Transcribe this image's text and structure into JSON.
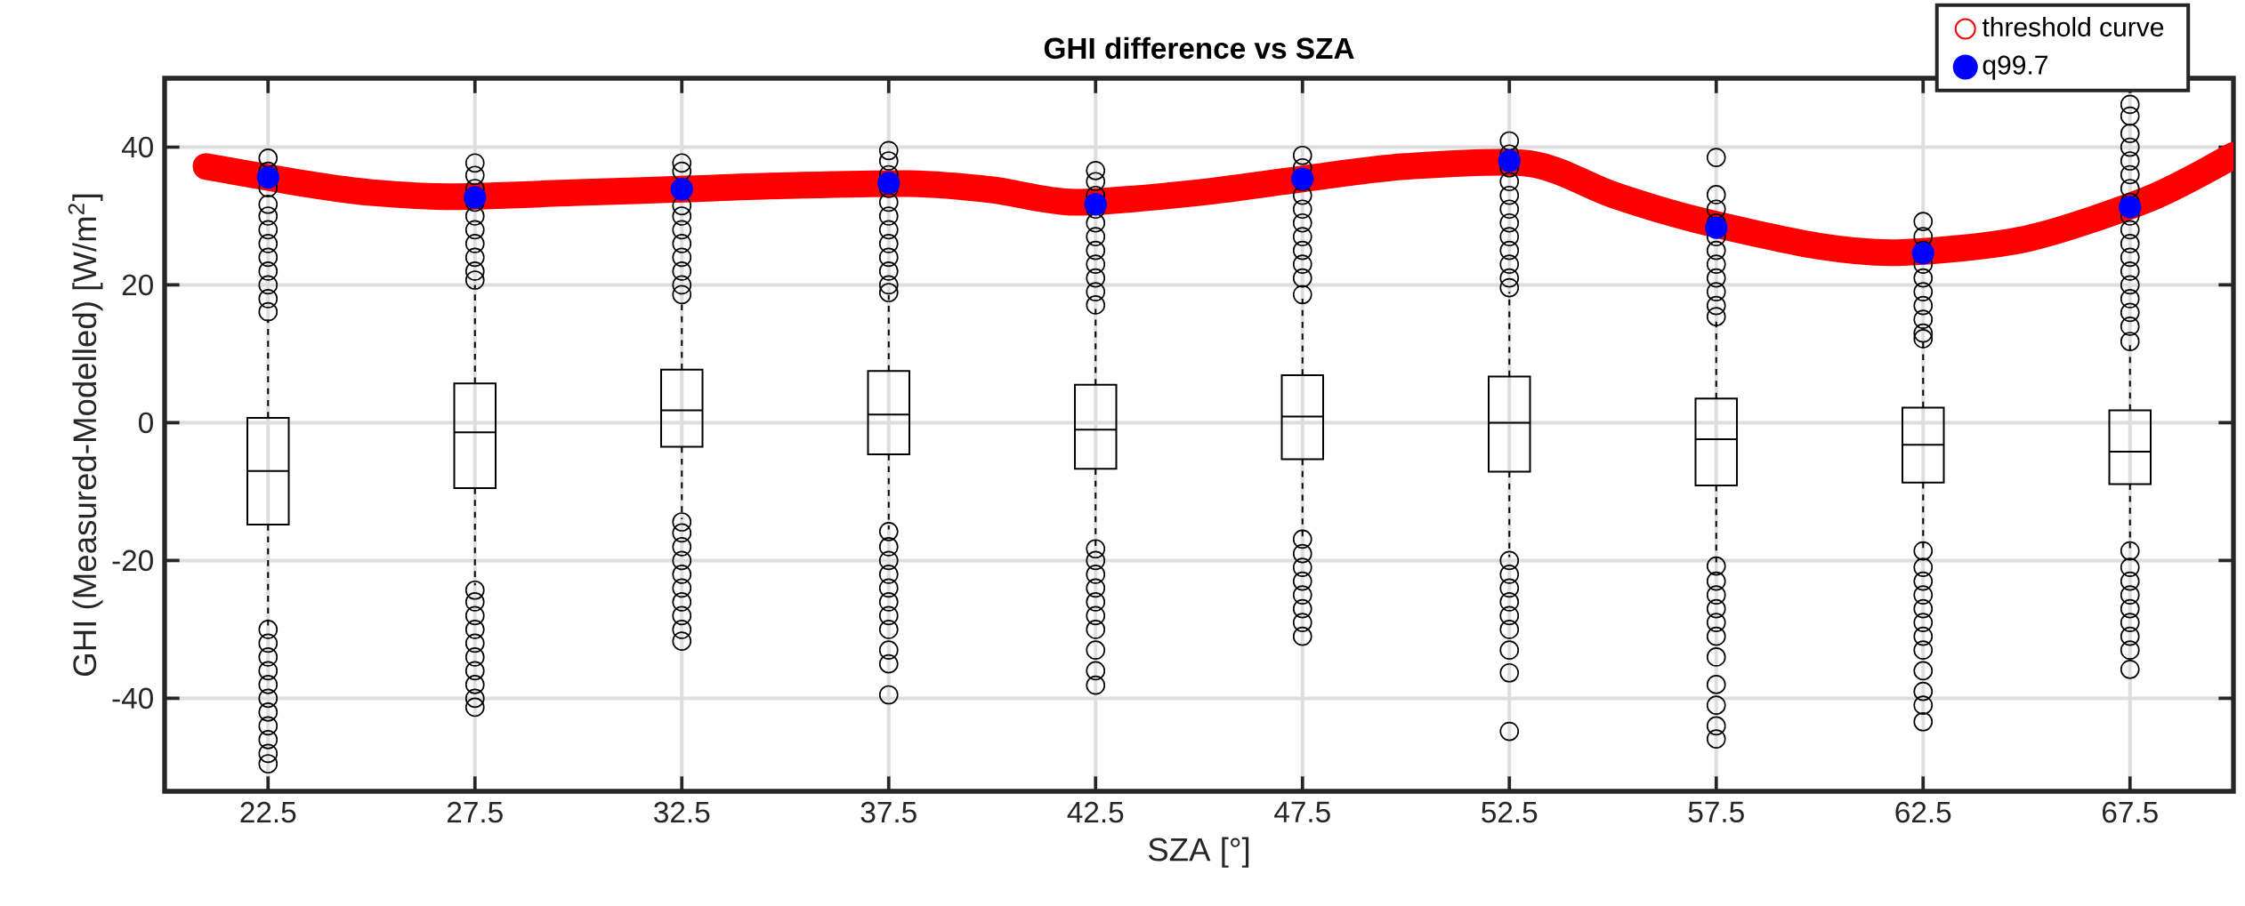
{
  "chart_data": {
    "type": "box",
    "title": "GHI difference vs SZA",
    "xlabel": "SZA [°]",
    "ylabel": "GHI (Measured-Modelled) [W/m$^{2}$]",
    "x": [
      22.5,
      27.5,
      32.5,
      37.5,
      42.5,
      47.5,
      52.5,
      57.5,
      62.5,
      67.5
    ],
    "xlim": [
      20,
      70
    ],
    "xticks": [
      22.5,
      27.5,
      32.5,
      37.5,
      42.5,
      47.5,
      52.5,
      57.5,
      62.5,
      67.5
    ],
    "ylim": [
      -53.5,
      50
    ],
    "yticks": [
      -40,
      -20,
      0,
      20,
      40
    ],
    "grid": true,
    "legend": "top right",
    "boxes": [
      {
        "low": -29.6,
        "q1": -14.8,
        "median": -7.0,
        "q3": 0.7,
        "high": 15.0,
        "outliers": [
          38.4,
          36.5,
          34.1,
          31.7,
          30,
          28,
          26,
          24,
          22,
          20,
          18,
          16.1,
          -30,
          -32,
          -34,
          -36,
          -38,
          -40,
          -42,
          -44,
          -46,
          -48,
          -49.5
        ]
      },
      {
        "low": -23.6,
        "q1": -9.5,
        "median": -1.4,
        "q3": 5.7,
        "high": 20.0,
        "outliers": [
          37.7,
          35.9,
          34,
          32,
          30,
          28,
          26,
          24,
          22,
          20.7,
          -24.3,
          -26,
          -28,
          -30,
          -32,
          -34,
          -36,
          -38,
          -40,
          -41.3
        ]
      },
      {
        "low": -14.0,
        "q1": -3.5,
        "median": 1.8,
        "q3": 7.7,
        "high": 18.0,
        "outliers": [
          37.7,
          36.5,
          31.5,
          30,
          28,
          26,
          24,
          22,
          20,
          18.6,
          -14.4,
          -16,
          -18,
          -20,
          -22,
          -24,
          -26,
          -28,
          -30,
          -31.7
        ]
      },
      {
        "low": -15.5,
        "q1": -4.6,
        "median": 1.2,
        "q3": 7.5,
        "high": 18.5,
        "outliers": [
          39.5,
          38,
          36,
          34,
          32,
          30,
          28,
          26,
          24,
          22,
          20,
          18.9,
          -15.8,
          -18,
          -20,
          -22,
          -24,
          -26,
          -28,
          -30,
          -33,
          -35,
          -39.5
        ]
      },
      {
        "low": -18.0,
        "q1": -6.7,
        "median": -1.0,
        "q3": 5.5,
        "high": 16.5,
        "outliers": [
          36.6,
          35,
          33,
          31,
          29,
          27,
          25,
          23,
          21,
          19,
          17.1,
          -18.3,
          -20,
          -22,
          -24,
          -26,
          -28,
          -30,
          -33,
          -36,
          -38.1
        ]
      },
      {
        "low": -16.5,
        "q1": -5.3,
        "median": 0.9,
        "q3": 6.9,
        "high": 18.0,
        "outliers": [
          38.8,
          37,
          35,
          33,
          31,
          29,
          27,
          25,
          23,
          21,
          18.6,
          -16.9,
          -19,
          -21,
          -23,
          -25,
          -27,
          -29,
          -31
        ]
      },
      {
        "low": -19.5,
        "q1": -7.1,
        "median": 0.0,
        "q3": 6.7,
        "high": 19.0,
        "outliers": [
          40.9,
          39,
          37,
          35,
          33,
          31,
          29,
          27,
          25,
          23,
          21,
          19.6,
          -20,
          -22,
          -24,
          -26,
          -28,
          -30,
          -33,
          -36.3,
          -44.8
        ]
      },
      {
        "low": -20.5,
        "q1": -9.1,
        "median": -2.4,
        "q3": 3.5,
        "high": 15.0,
        "outliers": [
          38.5,
          33.1,
          31,
          29,
          27,
          25,
          23,
          21,
          19,
          17,
          15.4,
          -20.8,
          -23,
          -25,
          -27,
          -29,
          -31,
          -34,
          -38,
          -41,
          -44,
          -45.9
        ]
      },
      {
        "low": -18.2,
        "q1": -8.7,
        "median": -3.2,
        "q3": 2.2,
        "high": 11.8,
        "outliers": [
          29.2,
          27,
          25,
          23,
          21,
          19,
          17,
          15,
          13,
          12.2,
          -18.6,
          -21,
          -23,
          -25,
          -27,
          -29,
          -31,
          -33,
          -36,
          -39,
          -41,
          -43.4
        ]
      },
      {
        "low": -18.2,
        "q1": -8.9,
        "median": -4.2,
        "q3": 1.8,
        "high": 11.4,
        "outliers": [
          46.2,
          44.5,
          42,
          40,
          38,
          36,
          34,
          32,
          30,
          28,
          26,
          24,
          22,
          20,
          18,
          16,
          14,
          11.8,
          -18.6,
          -21,
          -23,
          -25,
          -27,
          -29,
          -31,
          -33,
          -35.8
        ]
      }
    ],
    "series": [
      {
        "name": "threshold curve",
        "type": "line",
        "color": "#ff0000",
        "marker": "circle",
        "x": [
          21,
          23.5,
          25,
          27,
          30,
          33,
          35,
          38,
          40,
          42,
          45,
          48,
          50,
          53,
          55,
          57,
          60,
          62,
          65,
          68,
          70
        ],
        "values": [
          37.2,
          34.6,
          33.4,
          32.8,
          33.4,
          34.0,
          34.4,
          34.7,
          33.8,
          32.0,
          33.4,
          35.8,
          37.2,
          37.6,
          33.1,
          29.5,
          25.6,
          24.7,
          26.7,
          32.6,
          38.8
        ]
      },
      {
        "name": "q99.7",
        "type": "scatter",
        "color": "#0000ff",
        "marker": "circle",
        "values": [
          35.6,
          32.7,
          33.9,
          34.8,
          31.7,
          35.4,
          38.0,
          28.3,
          24.6,
          31.3
        ]
      }
    ]
  }
}
